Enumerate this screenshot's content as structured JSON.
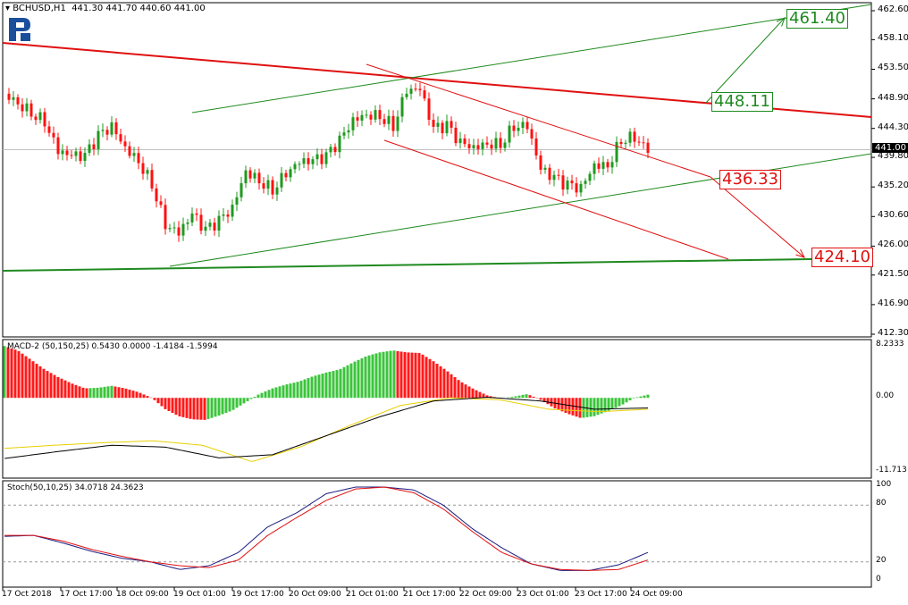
{
  "header": {
    "symbol": "BCHUSD,H1",
    "ohlc": "441.30 441.70 440.60 441.00"
  },
  "logo": {
    "text": "R",
    "color": "#1a4f9c"
  },
  "price_axis": {
    "ticks": [
      "462.60",
      "458.10",
      "453.50",
      "448.90",
      "444.30",
      "439.80",
      "435.20",
      "430.60",
      "426.00",
      "421.50",
      "416.90",
      "412.30"
    ],
    "current": "441.00",
    "range": [
      412.3,
      462.6
    ]
  },
  "time_axis": [
    "17 Oct 2018",
    "17 Oct 17:00",
    "18 Oct 09:00",
    "19 Oct 01:00",
    "19 Oct 17:00",
    "20 Oct 09:00",
    "21 Oct 01:00",
    "21 Oct 17:00",
    "22 Oct 09:00",
    "23 Oct 01:00",
    "23 Oct 17:00",
    "24 Oct 09:00"
  ],
  "closes": [
    449.7,
    448.3,
    446.9,
    445.5,
    440.9,
    440,
    439.9,
    443,
    444.5,
    441.3,
    439.3,
    435.8,
    429.5,
    428.1,
    430.9,
    428.3,
    429.8,
    431.8,
    437.7,
    436.3,
    434.9,
    437.5,
    439.1,
    439.2,
    439.8,
    442.3,
    445.5,
    446.5,
    446.4,
    444.8,
    450.4,
    450.4,
    444.1,
    444.6,
    441.9,
    441.3,
    442,
    442,
    444.8,
    444.8,
    437.9,
    436.5,
    435.3,
    434.9,
    438.6,
    438.6,
    442.7,
    443.1,
    441
  ],
  "targets": [
    {
      "label": "461.40",
      "color": "#1f8a1f"
    },
    {
      "label": "448.11",
      "color": "#1f8a1f"
    },
    {
      "label": "436.33",
      "color": "#e01010"
    },
    {
      "label": "424.10",
      "color": "#e01010"
    }
  ],
  "macd": {
    "label": "MACD-2 (50,150,25) 0.5430 0.0000 -1.4184 -1.5994",
    "ticks": [
      "8.2333",
      "0.00",
      "-11.713"
    ],
    "range": [
      -11.713,
      8.2333
    ],
    "histogram": [
      8.2,
      7.5,
      6,
      4.5,
      3.3,
      2.3,
      1.5,
      1.6,
      1.9,
      1.5,
      0.9,
      0,
      -1.8,
      -2.9,
      -3.4,
      -3.5,
      -2.8,
      -2,
      -0.7,
      0.6,
      1.5,
      2.1,
      2.6,
      3.4,
      4,
      4.5,
      5.6,
      6.6,
      7.2,
      7.5,
      7.2,
      7.1,
      5.8,
      4.3,
      2.6,
      1.4,
      0.4,
      -0.1,
      0.2,
      0.6,
      -0.3,
      -1.6,
      -2.5,
      -3.2,
      -2.9,
      -2.1,
      -1.2,
      0,
      0.5
    ],
    "signal_yellow": [
      -8,
      -7.5,
      -7.1,
      -6.8,
      -7.5,
      -10.1,
      -7.7,
      -4.3,
      -1.2,
      0,
      -0.3,
      -1.8,
      -2.2,
      -1.8
    ],
    "line_black": [
      -9.6,
      -8.5,
      -7.5,
      -7.8,
      -9.5,
      -9,
      -6,
      -3,
      -0.5,
      0.1,
      -0.5,
      -1.8,
      -1.6
    ],
    "colors": {
      "up": "#3cc43c",
      "down": "#ff1a1a"
    }
  },
  "stoch": {
    "label": "Stoch(50,10,25) 34.0718 24.3623",
    "ticks": [
      "100",
      "80",
      "20",
      "0"
    ],
    "main": [
      47,
      48,
      40,
      31,
      24,
      20,
      12,
      16,
      30,
      57,
      72,
      92,
      99,
      99,
      96,
      80,
      55,
      35,
      18,
      11,
      11,
      17,
      30
    ],
    "signal": [
      48,
      48,
      42,
      33,
      26,
      20,
      16,
      14,
      22,
      48,
      67,
      85,
      97,
      99,
      93,
      76,
      52,
      30,
      18,
      12,
      11,
      12,
      22
    ]
  },
  "colors": {
    "bull": "#1f9a1f",
    "bear": "#ff1010",
    "green_line": "#1f8a1f",
    "red_line": "#e01010"
  }
}
